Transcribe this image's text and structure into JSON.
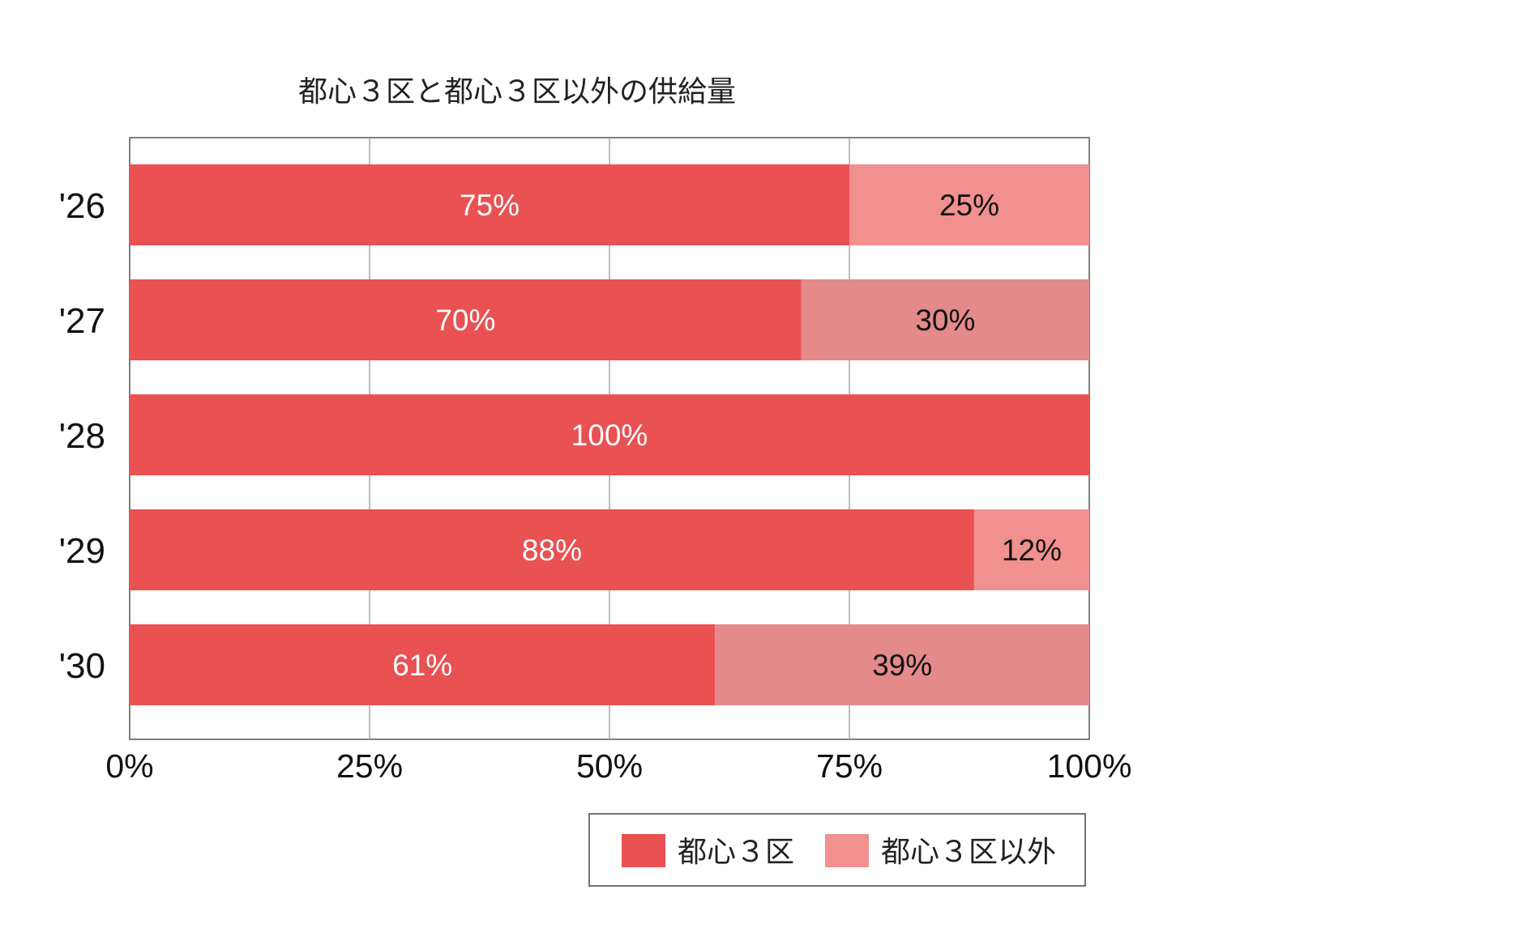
{
  "chart_data": {
    "type": "bar",
    "orientation": "horizontal",
    "stacked": "percent",
    "title": "都心３区と都心３区以外の供給量",
    "categories": [
      "'26",
      "'27",
      "'28",
      "'29",
      "'30"
    ],
    "series": [
      {
        "name": "都心３区",
        "values": [
          75,
          70,
          100,
          88,
          61
        ],
        "labels": [
          "75%",
          "70%",
          "100%",
          "88%",
          "61%"
        ],
        "color": "#E95153",
        "label_color": "#ffffff"
      },
      {
        "name": "都心３区以外",
        "values": [
          25,
          30,
          0,
          12,
          39
        ],
        "labels": [
          "25%",
          "30%",
          "",
          "12%",
          "39%"
        ],
        "colors": [
          "#F0908F",
          "#E48A8A",
          "#E48A8A",
          "#F0908F",
          "#E48A8A"
        ],
        "label_color": "#111111"
      }
    ],
    "xlim": [
      0,
      100
    ],
    "x_ticks": [
      "0%",
      "25%",
      "50%",
      "75%",
      "100%"
    ],
    "grid": true,
    "legend": "bottom-center",
    "colors": {
      "grid": "#999999",
      "frame": "#555555"
    }
  }
}
